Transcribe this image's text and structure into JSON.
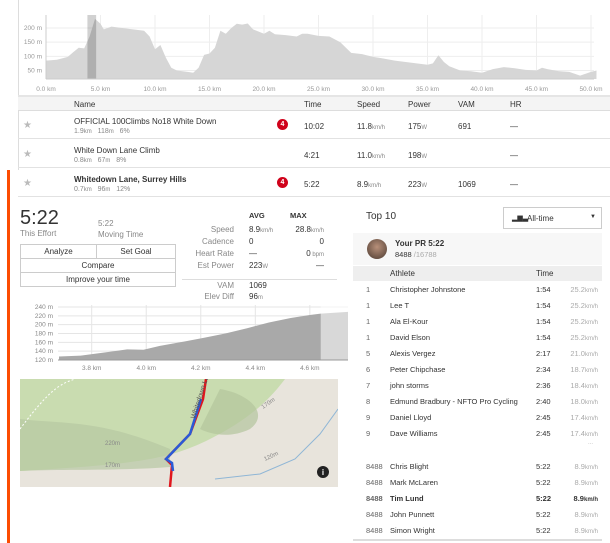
{
  "overview_chart": {
    "y_ticks": [
      "200 m",
      "150 m",
      "100 m",
      "50 m"
    ],
    "x_ticks": [
      "0.0 km",
      "5.0 km",
      "10.0 km",
      "15.0 km",
      "20.0 km",
      "25.0 km",
      "30.0 km",
      "35.0 km",
      "40.0 km",
      "45.0 km",
      "50.0 km"
    ],
    "highlight_km": [
      3.8,
      4.6
    ],
    "profile": [
      [
        0,
        85
      ],
      [
        1,
        88
      ],
      [
        2,
        98
      ],
      [
        2.5,
        115
      ],
      [
        3,
        130
      ],
      [
        3.5,
        128
      ],
      [
        4,
        170
      ],
      [
        4.5,
        232
      ],
      [
        5,
        215
      ],
      [
        5.3,
        195
      ],
      [
        6,
        205
      ],
      [
        7,
        200
      ],
      [
        8,
        195
      ],
      [
        9,
        190
      ],
      [
        9.5,
        170
      ],
      [
        10,
        125
      ],
      [
        10.5,
        140
      ],
      [
        11,
        95
      ],
      [
        11.5,
        60
      ],
      [
        12,
        50
      ],
      [
        13,
        45
      ],
      [
        13.5,
        42
      ],
      [
        14,
        60
      ],
      [
        14.5,
        105
      ],
      [
        15,
        110
      ],
      [
        15.5,
        130
      ],
      [
        16,
        190
      ],
      [
        16.5,
        180
      ],
      [
        17,
        200
      ],
      [
        17.5,
        215
      ],
      [
        18,
        212
      ],
      [
        18.5,
        216
      ],
      [
        19,
        195
      ],
      [
        20,
        180
      ],
      [
        20.5,
        190
      ],
      [
        21,
        178
      ],
      [
        22,
        175
      ],
      [
        23,
        170
      ],
      [
        23.5,
        180
      ],
      [
        24,
        180
      ],
      [
        25,
        172
      ],
      [
        26,
        170
      ],
      [
        27,
        150
      ],
      [
        28,
        112
      ],
      [
        29,
        108
      ],
      [
        30,
        98
      ],
      [
        31,
        92
      ],
      [
        32,
        85
      ],
      [
        33,
        80
      ],
      [
        34,
        75
      ],
      [
        35,
        70
      ],
      [
        35.5,
        75
      ],
      [
        36,
        104
      ],
      [
        36.5,
        80
      ],
      [
        37,
        65
      ],
      [
        38,
        50
      ],
      [
        39,
        47
      ],
      [
        40,
        42
      ],
      [
        41,
        55
      ],
      [
        42,
        62
      ],
      [
        43,
        58
      ],
      [
        44,
        52
      ],
      [
        45,
        50
      ],
      [
        45.5,
        60
      ],
      [
        46,
        55
      ],
      [
        47,
        48
      ],
      [
        48,
        45
      ],
      [
        49,
        32
      ],
      [
        50,
        45
      ],
      [
        50.5,
        50
      ]
    ],
    "color": "#d6d6d6"
  },
  "segments": {
    "headers": {
      "name": "Name",
      "time": "Time",
      "speed": "Speed",
      "power": "Power",
      "vam": "VAM",
      "hr": "HR"
    },
    "rows": [
      {
        "name": "OFFICIAL 100Climbs No18 White Down",
        "dist": "1.9",
        "dist_u": "km",
        "elev": "118",
        "elev_u": "m",
        "grade": "6%",
        "badge": "4",
        "time": "10:02",
        "speed": "11.8",
        "speed_u": "km/h",
        "power": "175",
        "power_u": "W",
        "vam": "691",
        "hr": "—",
        "bold": false
      },
      {
        "name": "White Down Lane Climb",
        "dist": "0.8",
        "dist_u": "km",
        "elev": "67",
        "elev_u": "m",
        "grade": "8%",
        "badge": "",
        "time": "4:21",
        "speed": "11.0",
        "speed_u": "km/h",
        "power": "198",
        "power_u": "W",
        "vam": "",
        "hr": "—",
        "bold": false
      },
      {
        "name": "Whitedown Lane, Surrey Hills",
        "dist": "0.7",
        "dist_u": "km",
        "elev": "96",
        "elev_u": "m",
        "grade": "12%",
        "badge": "4",
        "time": "5:22",
        "speed": "8.9",
        "speed_u": "km/h",
        "power": "223",
        "power_u": "W",
        "vam": "1069",
        "hr": "—",
        "bold": true
      }
    ]
  },
  "effort": {
    "time": "5:22",
    "time_label": "This Effort",
    "moving": "5:22",
    "moving_label": "Moving Time",
    "analyze": "Analyze",
    "set_goal": "Set Goal",
    "compare": "Compare",
    "improve": "Improve your time",
    "avg": "AVG",
    "max": "MAX",
    "stats": [
      {
        "label": "Speed",
        "avg": "8.9",
        "avg_u": "km/h",
        "max": "28.8",
        "max_u": "km/h"
      },
      {
        "label": "Cadence",
        "avg": "0",
        "avg_u": "",
        "max": "0",
        "max_u": ""
      },
      {
        "label": "Heart Rate",
        "avg": "—",
        "avg_u": "",
        "max": "0",
        "max_u": " bpm"
      },
      {
        "label": "Est Power",
        "avg": "223",
        "avg_u": "W",
        "max": "—",
        "max_u": ""
      }
    ],
    "vam_label": "VAM",
    "vam": "1069",
    "elev_label": "Elev Diff",
    "elev": "96",
    "elev_u": "m"
  },
  "segment_chart": {
    "y_ticks": [
      "240 m",
      "220 m",
      "200 m",
      "180 m",
      "160 m",
      "140 m",
      "120 m"
    ],
    "x_ticks": [
      "3.8 km",
      "4.0 km",
      "4.2 km",
      "4.4 km",
      "4.6 km"
    ],
    "profile": [
      [
        3.68,
        128
      ],
      [
        3.76,
        130
      ],
      [
        3.86,
        138
      ],
      [
        3.93,
        144
      ],
      [
        3.99,
        143
      ],
      [
        4.05,
        152
      ],
      [
        4.14,
        162
      ],
      [
        4.21,
        170
      ],
      [
        4.29,
        180
      ],
      [
        4.37,
        192
      ],
      [
        4.45,
        205
      ],
      [
        4.53,
        215
      ],
      [
        4.6,
        222
      ],
      [
        4.64,
        225
      ],
      [
        4.74,
        229
      ]
    ],
    "end_km": 4.64
  },
  "map": {
    "labels": [
      "Whitedown Lane",
      "220m",
      "170m",
      "170m",
      "120m"
    ],
    "info_icon": "info-icon"
  },
  "leaderboard": {
    "title": "Top 10",
    "filter": "All-time",
    "pr_label": "Your PR 5:22",
    "pr_rank": "8488",
    "pr_total": "/16788",
    "col_athlete": "Athlete",
    "col_time": "Time",
    "ellipsis": "...",
    "top": [
      {
        "rank": "1",
        "name": "Christopher Johnstone",
        "time": "1:54",
        "speed": "25.2",
        "u": "km/h"
      },
      {
        "rank": "1",
        "name": "Lee T",
        "time": "1:54",
        "speed": "25.2",
        "u": "km/h"
      },
      {
        "rank": "1",
        "name": "Ala El-Kour",
        "time": "1:54",
        "speed": "25.2",
        "u": "km/h"
      },
      {
        "rank": "1",
        "name": "David Elson",
        "time": "1:54",
        "speed": "25.2",
        "u": "km/h"
      },
      {
        "rank": "5",
        "name": "Alexis Vergez",
        "time": "2:17",
        "speed": "21.0",
        "u": "km/h"
      },
      {
        "rank": "6",
        "name": "Peter Chipchase",
        "time": "2:34",
        "speed": "18.7",
        "u": "km/h"
      },
      {
        "rank": "7",
        "name": "john storms",
        "time": "2:36",
        "speed": "18.4",
        "u": "km/h"
      },
      {
        "rank": "8",
        "name": "Edmund Bradbury - NFTO Pro Cycling",
        "time": "2:40",
        "speed": "18.0",
        "u": "km/h"
      },
      {
        "rank": "9",
        "name": "Daniel Lloyd",
        "time": "2:45",
        "speed": "17.4",
        "u": "km/h"
      },
      {
        "rank": "9",
        "name": "Dave Williams",
        "time": "2:45",
        "speed": "17.4",
        "u": "km/h"
      }
    ],
    "near": [
      {
        "rank": "8488",
        "name": "Chris Blight",
        "time": "5:22",
        "speed": "8.9",
        "u": "km/h",
        "me": false
      },
      {
        "rank": "8488",
        "name": "Mark McLaren",
        "time": "5:22",
        "speed": "8.9",
        "u": "km/h",
        "me": false
      },
      {
        "rank": "8488",
        "name": "Tim Lund",
        "time": "5:22",
        "speed": "8.9",
        "u": "km/h",
        "me": true
      },
      {
        "rank": "8488",
        "name": "John Punnett",
        "time": "5:22",
        "speed": "8.9",
        "u": "km/h",
        "me": false
      },
      {
        "rank": "8488",
        "name": "Simon Wright",
        "time": "5:22",
        "speed": "8.9",
        "u": "km/h",
        "me": false
      }
    ]
  }
}
